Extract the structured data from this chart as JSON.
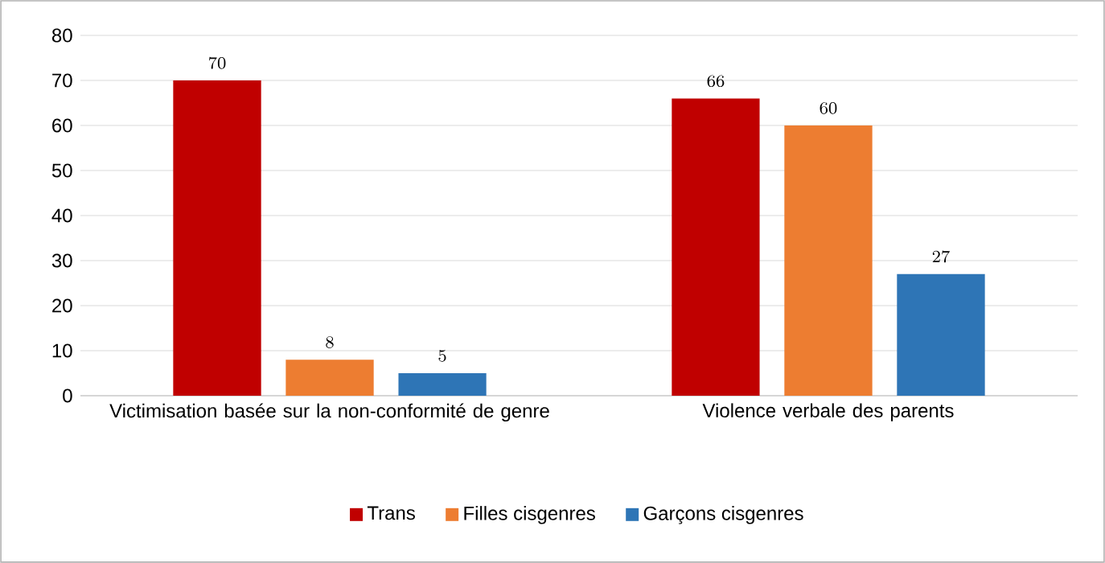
{
  "chart_data": {
    "type": "bar",
    "categories": [
      "Victimisation basée sur la non-conformité de genre",
      "Violence verbale des parents"
    ],
    "series": [
      {
        "name": "Trans",
        "color": "#c00000",
        "values": [
          70,
          66
        ]
      },
      {
        "name": "Filles cisgenres",
        "color": "#ed7d31",
        "values": [
          8,
          60
        ]
      },
      {
        "name": "Garçons cisgenres",
        "color": "#2e75b6",
        "values": [
          5,
          27
        ]
      }
    ],
    "ylim": [
      0,
      80
    ],
    "yticks": [
      0,
      10,
      20,
      30,
      40,
      50,
      60,
      70,
      80
    ],
    "grid": "y",
    "legend": "bottom",
    "data_labels": true
  }
}
